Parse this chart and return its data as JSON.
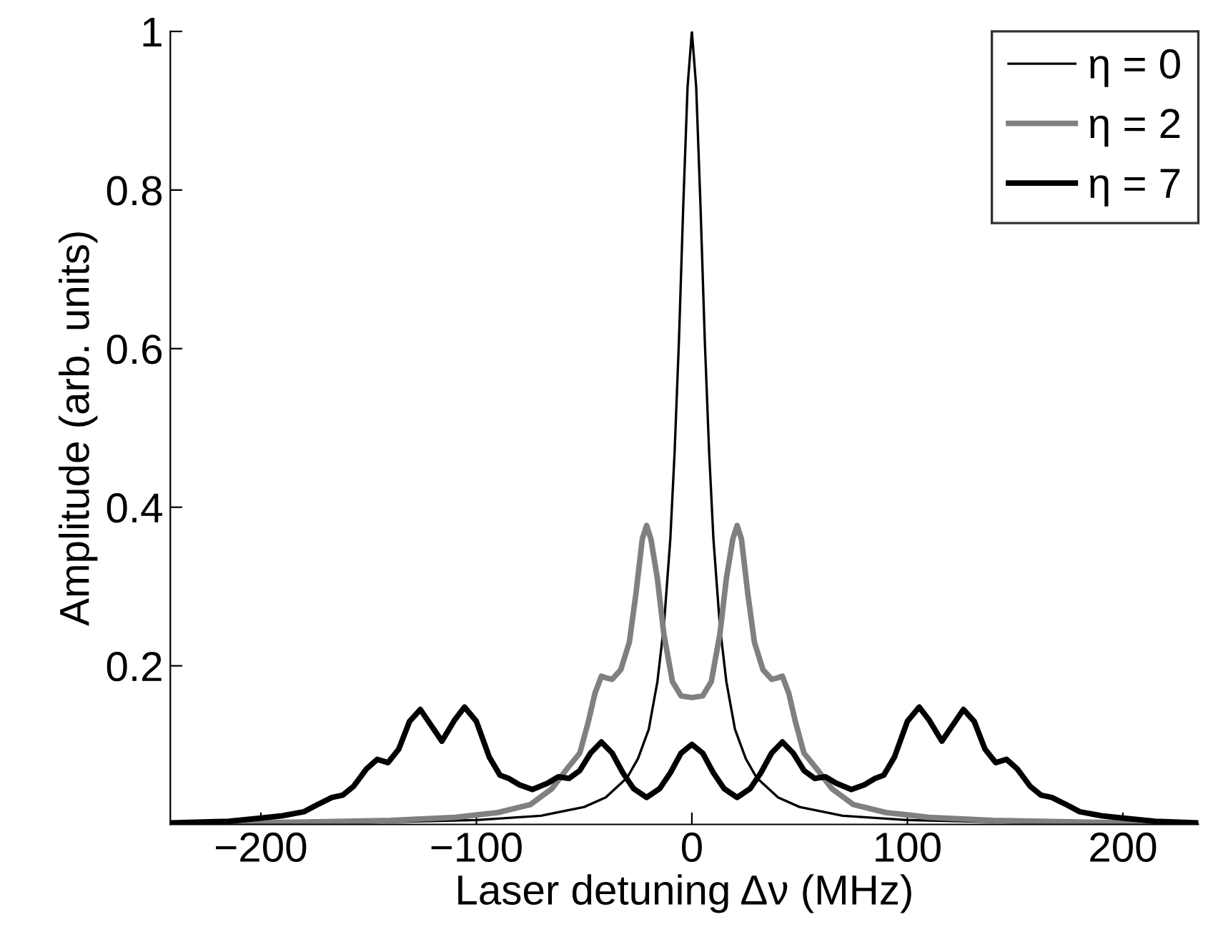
{
  "chart_data": {
    "type": "line",
    "xlabel": "Laser detuning Δν (MHz)",
    "ylabel": "Amplitude (arb. units)",
    "xlim": [
      -242,
      235
    ],
    "xticks": [
      {
        "value": -200,
        "label": "−200"
      },
      {
        "value": -100,
        "label": "−100"
      },
      0,
      100,
      200
    ],
    "ylim": [
      0,
      1
    ],
    "yticks": [
      0.2,
      0.4,
      0.6,
      0.8,
      1
    ],
    "grid": false,
    "legend": "top right",
    "marker": "none",
    "line_style": "solid",
    "series": [
      {
        "name": "η = 0",
        "color": "#000000",
        "x": [
          -242,
          -150,
          -100,
          -70,
          -50,
          -40,
          -30,
          -25,
          -20,
          -16,
          -13,
          -10,
          -8,
          -6,
          -4,
          -2,
          0,
          2,
          4,
          6,
          8,
          10,
          13,
          16,
          20,
          25,
          30,
          40,
          50,
          70,
          100,
          150,
          235
        ],
        "values": [
          0.001,
          0.0025,
          0.0056,
          0.011,
          0.022,
          0.034,
          0.059,
          0.083,
          0.12,
          0.18,
          0.25,
          0.36,
          0.47,
          0.61,
          0.78,
          0.93,
          1,
          0.93,
          0.78,
          0.61,
          0.47,
          0.36,
          0.25,
          0.18,
          0.12,
          0.083,
          0.059,
          0.034,
          0.022,
          0.011,
          0.0056,
          0.0025,
          0.001
        ]
      },
      {
        "name": "η = 2",
        "color": "#808080",
        "x": [
          -242,
          -180,
          -140,
          -110,
          -90,
          -75,
          -65,
          -58,
          -52,
          -48,
          -45,
          -42,
          -40,
          -37,
          -33,
          -29,
          -26,
          -23,
          -21,
          -19,
          -16,
          -13,
          -9,
          -5,
          0,
          5,
          9,
          13,
          16,
          19,
          21,
          23,
          26,
          29,
          33,
          37,
          40,
          42,
          45,
          48,
          52,
          58,
          65,
          75,
          90,
          110,
          140,
          180,
          235
        ],
        "values": [
          0.001,
          0.003,
          0.005,
          0.009,
          0.015,
          0.025,
          0.045,
          0.07,
          0.09,
          0.13,
          0.165,
          0.187,
          0.185,
          0.183,
          0.195,
          0.23,
          0.29,
          0.36,
          0.377,
          0.36,
          0.31,
          0.24,
          0.18,
          0.162,
          0.16,
          0.162,
          0.18,
          0.24,
          0.31,
          0.36,
          0.377,
          0.36,
          0.29,
          0.23,
          0.195,
          0.183,
          0.185,
          0.187,
          0.165,
          0.13,
          0.09,
          0.07,
          0.045,
          0.025,
          0.015,
          0.009,
          0.005,
          0.003,
          0.001
        ]
      },
      {
        "name": "η = 7",
        "color": "#000000",
        "x": [
          -242,
          -215,
          -200,
          -190,
          -180,
          -173,
          -167,
          -162,
          -157,
          -151,
          -146,
          -141,
          -136,
          -131,
          -126,
          -121,
          -116,
          -110,
          -105.5,
          -100,
          -94,
          -89,
          -85,
          -80,
          -74,
          -67,
          -62,
          -57,
          -52,
          -47,
          -42,
          -37,
          -32,
          -27,
          -21,
          -15,
          -10,
          -5,
          0,
          5,
          10,
          15,
          21,
          27,
          32,
          37,
          42,
          47,
          52,
          57,
          62,
          67,
          74,
          80,
          85,
          89,
          94,
          100,
          105.5,
          110,
          116,
          121,
          126,
          131,
          136,
          141,
          146,
          151,
          157,
          162,
          167,
          173,
          180,
          190,
          200,
          215,
          235
        ],
        "values": [
          0.002,
          0.004,
          0.008,
          0.011,
          0.016,
          0.026,
          0.034,
          0.037,
          0.048,
          0.07,
          0.082,
          0.078,
          0.095,
          0.13,
          0.145,
          0.125,
          0.105,
          0.132,
          0.148,
          0.13,
          0.085,
          0.062,
          0.058,
          0.05,
          0.044,
          0.052,
          0.06,
          0.058,
          0.068,
          0.09,
          0.104,
          0.09,
          0.065,
          0.045,
          0.034,
          0.045,
          0.065,
          0.09,
          0.101,
          0.09,
          0.065,
          0.045,
          0.034,
          0.045,
          0.065,
          0.09,
          0.104,
          0.09,
          0.068,
          0.058,
          0.06,
          0.052,
          0.044,
          0.05,
          0.058,
          0.062,
          0.085,
          0.13,
          0.148,
          0.132,
          0.105,
          0.125,
          0.145,
          0.13,
          0.095,
          0.078,
          0.082,
          0.07,
          0.048,
          0.037,
          0.034,
          0.026,
          0.016,
          0.011,
          0.008,
          0.004,
          0.002
        ]
      }
    ]
  }
}
